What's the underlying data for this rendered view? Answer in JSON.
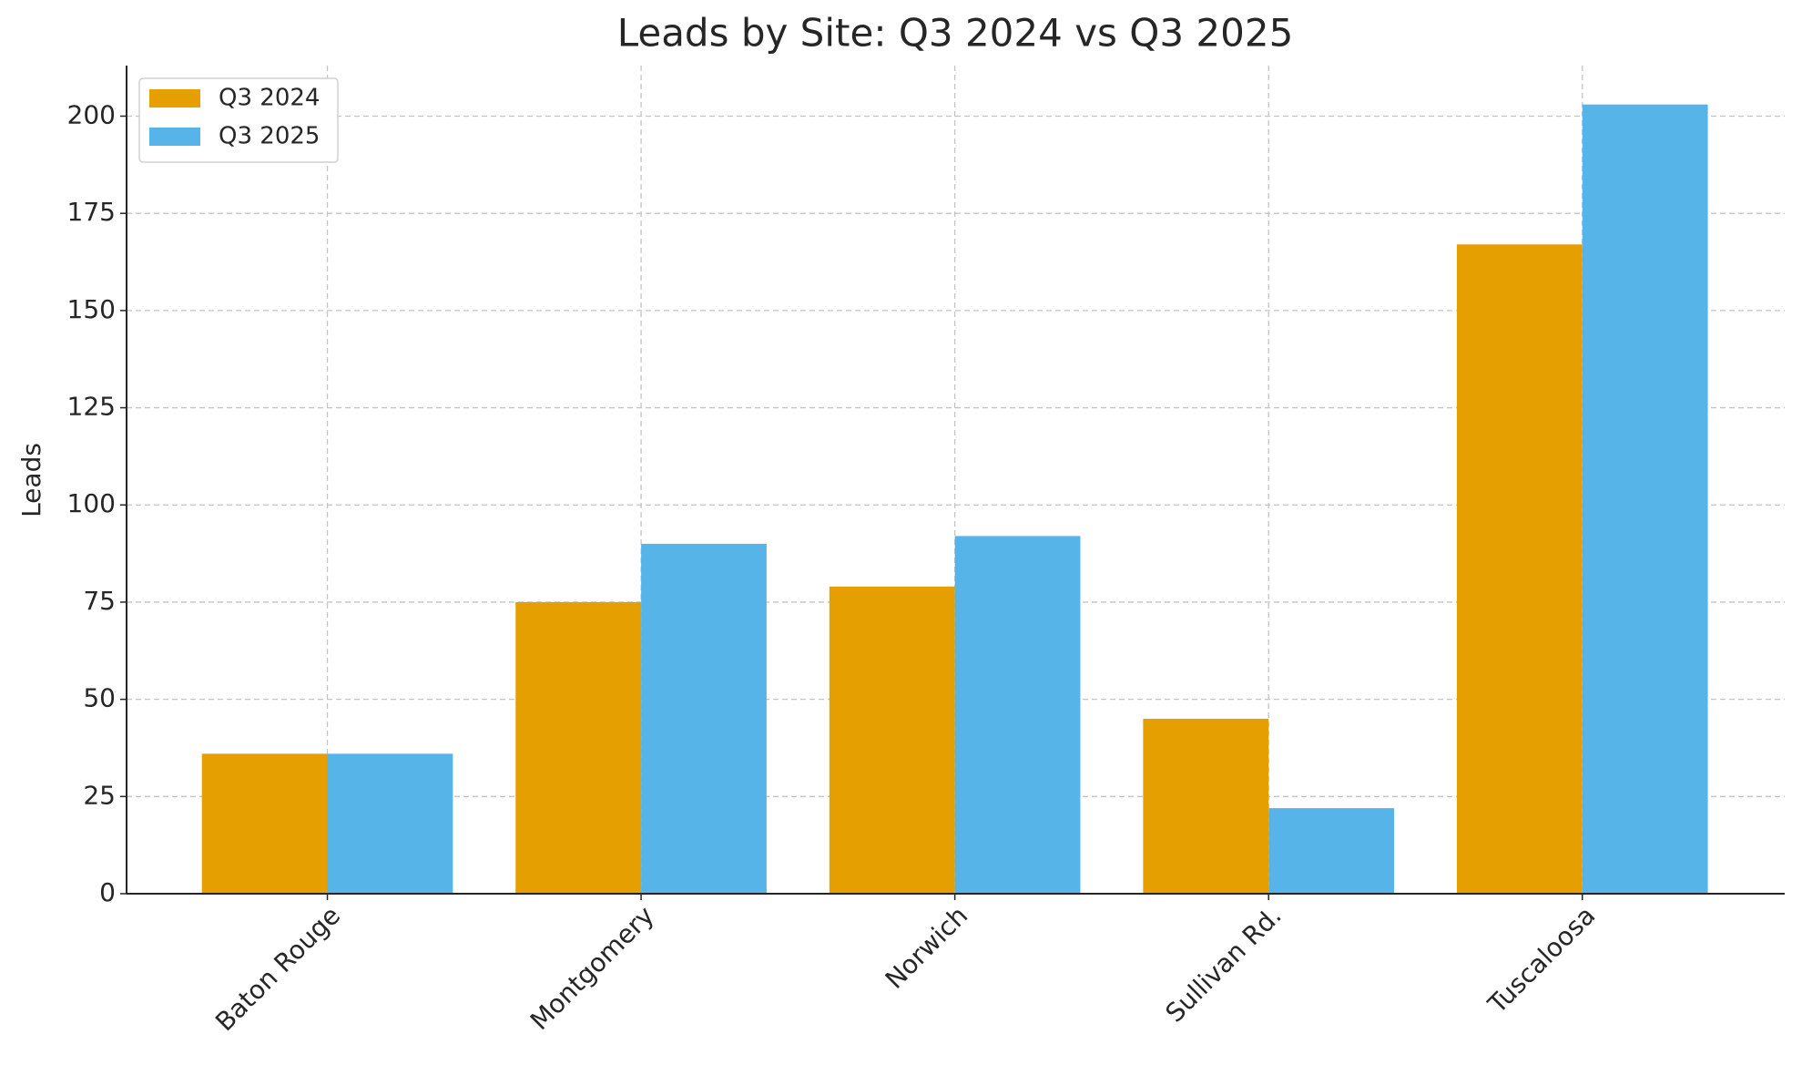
{
  "chart_data": {
    "type": "bar",
    "title": "Leads by Site: Q3 2024 vs Q3 2025",
    "y_label": "Leads",
    "categories": [
      "Baton Rouge",
      "Montgomery",
      "Norwich",
      "Sullivan Rd.",
      "Tuscaloosa"
    ],
    "series": [
      {
        "name": "Q3 2024",
        "color": "#e69f00",
        "values": [
          36,
          75,
          79,
          45,
          167
        ]
      },
      {
        "name": "Q3 2025",
        "color": "#56b4e9",
        "values": [
          36,
          90,
          92,
          22,
          203
        ]
      }
    ],
    "ylim": [
      0,
      213
    ],
    "yticks": [
      0,
      25,
      50,
      75,
      100,
      125,
      150,
      175,
      200
    ],
    "grid": true,
    "legend": "upper left"
  }
}
